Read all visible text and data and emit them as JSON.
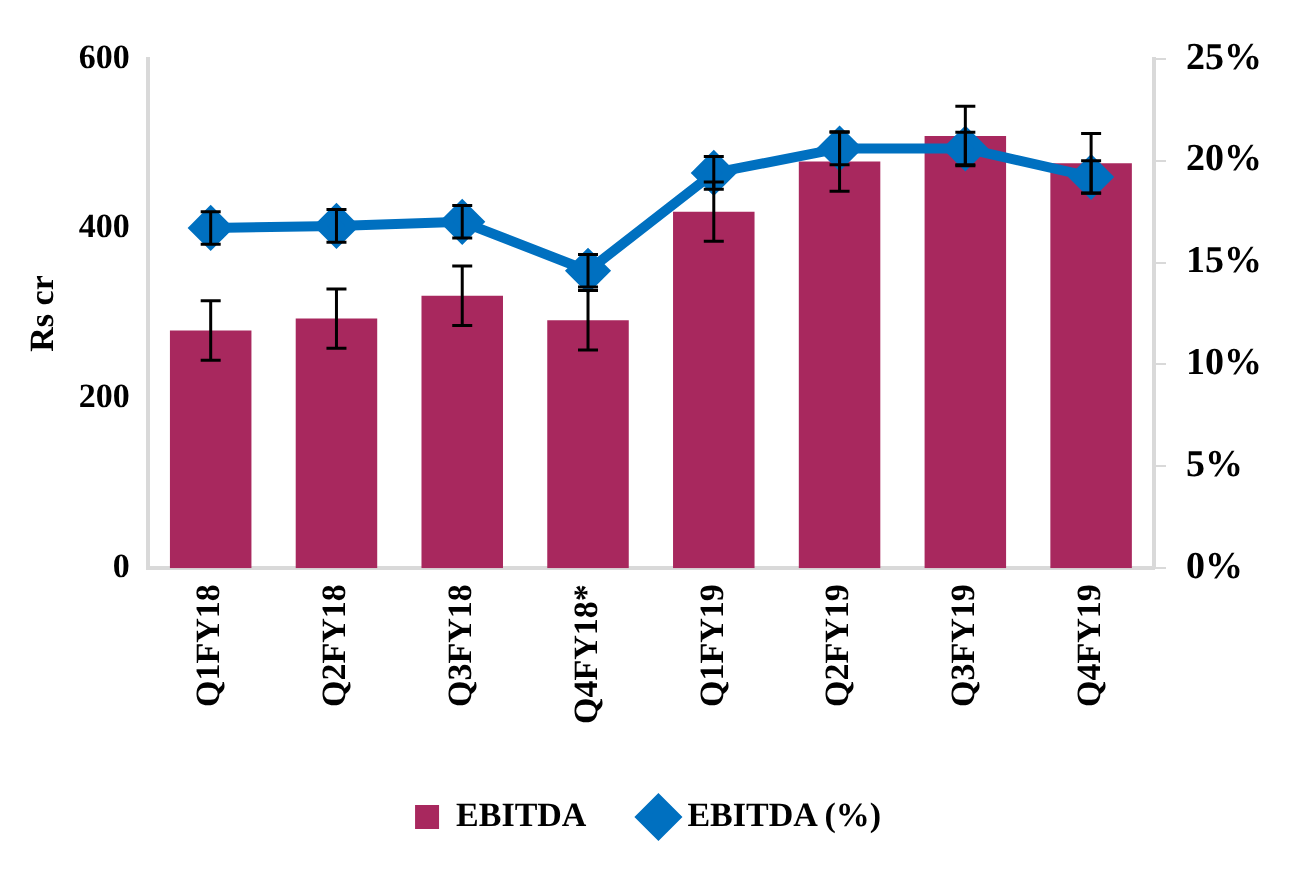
{
  "chart_data": {
    "type": "bar",
    "categories": [
      "Q1FY18",
      "Q2FY18",
      "Q3FY18",
      "Q4FY18*",
      "Q1FY19",
      "Q2FY19",
      "Q3FY19",
      "Q4FY19"
    ],
    "series": [
      {
        "name": "EBITDA",
        "color": "#a8285e",
        "values": [
          280,
          294,
          321,
          292,
          420,
          479,
          509,
          477
        ],
        "errors": [
          35,
          35,
          35,
          35,
          35,
          35,
          35,
          35
        ]
      },
      {
        "name": "EBITDA (%)",
        "type": "line",
        "axis": "y2",
        "color": "#0070c0",
        "marker": "diamond",
        "values": [
          16.7,
          16.8,
          17.0,
          14.6,
          19.4,
          20.6,
          20.6,
          19.2
        ],
        "errors": [
          0.8,
          0.8,
          0.8,
          0.8,
          0.8,
          0.8,
          0.8,
          0.8
        ]
      }
    ],
    "ylabel": "Rs cr",
    "ylim": [
      0,
      600
    ],
    "yticks": [
      0,
      200,
      400,
      600
    ],
    "y2lim": [
      0,
      25
    ],
    "y2ticks": [
      {
        "value": 0,
        "label": "0%"
      },
      {
        "value": 5,
        "label": "5%"
      },
      {
        "value": 10,
        "label": "10%"
      },
      {
        "value": 15,
        "label": "15%"
      },
      {
        "value": 20,
        "label": "20%"
      },
      {
        "value": 25,
        "label": "25%"
      }
    ],
    "grid": false,
    "legend": "bottom"
  }
}
